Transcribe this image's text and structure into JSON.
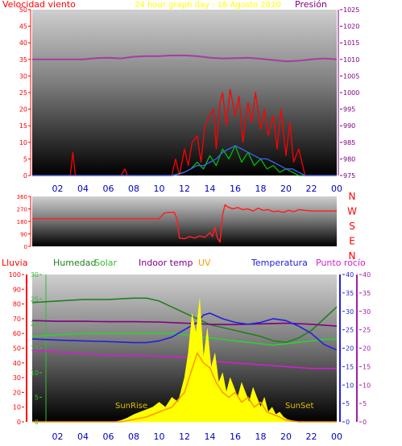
{
  "chart_data": [
    {
      "type": "line",
      "title": "24 hour graph day : 18 Agosto 2020",
      "left_label": "Velocidad viento",
      "right_label": "Presión",
      "y_ticks": [
        "0",
        "5",
        "10",
        "15",
        "20",
        "25",
        "30",
        "35",
        "40",
        "45",
        "50"
      ],
      "ylim": [
        0,
        50
      ],
      "y2_ticks": [
        "975",
        "980",
        "985",
        "990",
        "995",
        "1000",
        "1005",
        "1010",
        "1015",
        "1020",
        "1025"
      ],
      "y2lim": [
        975,
        1025
      ],
      "x_ticks": [
        "02",
        "04",
        "06",
        "08",
        "10",
        "12",
        "14",
        "16",
        "18",
        "20",
        "22",
        "00"
      ],
      "xlim": [
        0,
        24
      ],
      "colors": {
        "gust": "#ff0000",
        "wind": "#00c000",
        "avg": "#4060ff",
        "pressure": "#a040a0",
        "axis_left": "#ff0000",
        "axis_right": "#800080",
        "x_ticks": "#0000c0",
        "title": "#ffff00"
      },
      "series": [
        {
          "name": "Presión",
          "axis": "right",
          "x": [
            0,
            1,
            2,
            3,
            4,
            5,
            6,
            7,
            8,
            9,
            10,
            11,
            12,
            13,
            14,
            15,
            16,
            17,
            18,
            19,
            20,
            21,
            22,
            23,
            24
          ],
          "values": [
            1010,
            1010,
            1010,
            1010,
            1010,
            1010.4,
            1010.5,
            1010.3,
            1010.8,
            1011,
            1011,
            1011.2,
            1011.2,
            1011,
            1010.5,
            1010.3,
            1010.4,
            1010.5,
            1010.2,
            1009.8,
            1009.4,
            1009.6,
            1010,
            1010.3,
            1010
          ]
        },
        {
          "name": "gust",
          "axis": "left",
          "x": [
            0,
            0.5,
            1,
            1.5,
            2,
            2.5,
            3,
            3.2,
            3.4,
            4,
            5,
            6,
            7,
            7.3,
            7.5,
            8,
            9,
            10,
            10.5,
            11,
            11.3,
            11.6,
            12,
            12.3,
            12.6,
            13,
            13.3,
            13.6,
            14,
            14.3,
            14.5,
            14.8,
            15,
            15.3,
            15.6,
            16,
            16.3,
            16.6,
            17,
            17.3,
            17.6,
            18,
            18.3,
            18.6,
            19,
            19.3,
            19.6,
            20,
            20.3,
            20.6,
            21,
            21.5,
            22,
            22.5,
            23,
            23.5,
            24
          ],
          "values": [
            0,
            0,
            0,
            0,
            0,
            0,
            0,
            7,
            0,
            0,
            0,
            0,
            0,
            2,
            0,
            0,
            0,
            0,
            0,
            0,
            5,
            0,
            8,
            3,
            10,
            12,
            4,
            15,
            18,
            20,
            8,
            22,
            25,
            15,
            26,
            18,
            24,
            10,
            22,
            16,
            25,
            14,
            20,
            12,
            18,
            8,
            20,
            6,
            16,
            4,
            8,
            0,
            0,
            0,
            0,
            0,
            0
          ]
        },
        {
          "name": "wind",
          "axis": "left",
          "x": [
            0,
            11,
            12,
            12.5,
            13,
            13.5,
            14,
            14.5,
            15,
            15.5,
            16,
            16.5,
            17,
            17.5,
            18,
            18.5,
            19,
            19.5,
            20,
            20.5,
            21,
            21.5,
            24
          ],
          "values": [
            0,
            0,
            1,
            2,
            4,
            2,
            6,
            3,
            8,
            5,
            9,
            4,
            7,
            3,
            5,
            2,
            3,
            1,
            2,
            1,
            0,
            0,
            0
          ]
        },
        {
          "name": "avg",
          "axis": "left",
          "x": [
            0,
            11,
            11.5,
            12,
            12.5,
            13,
            13.5,
            14,
            14.5,
            15,
            15.5,
            16,
            16.5,
            17,
            17.5,
            18,
            18.5,
            19,
            19.5,
            20,
            20.5,
            21,
            21.5,
            22,
            24
          ],
          "values": [
            0,
            0,
            0.3,
            1,
            2,
            3,
            3,
            4,
            5,
            7,
            8,
            9,
            8,
            7,
            6,
            5,
            5,
            4,
            3,
            2,
            2,
            1,
            0,
            0,
            0
          ]
        }
      ]
    },
    {
      "type": "line",
      "right_labels": [
        "N",
        "W",
        "S",
        "E",
        "N"
      ],
      "y_ticks": [
        "0",
        "90",
        "180",
        "270",
        "360"
      ],
      "ylim": [
        0,
        360
      ],
      "x_ticks": [
        "02",
        "04",
        "06",
        "08",
        "10",
        "12",
        "14",
        "16",
        "18",
        "20",
        "22",
        "00"
      ],
      "xlim": [
        0,
        24
      ],
      "colors": {
        "direction": "#ff2020",
        "axis": "#ff0000"
      },
      "series": [
        {
          "name": "direction",
          "x": [
            0,
            1,
            2,
            3,
            4,
            5,
            6,
            7,
            8,
            9,
            10,
            10.4,
            10.8,
            11.2,
            11.4,
            11.6,
            12,
            12.4,
            12.8,
            13.2,
            13.6,
            13.8,
            14,
            14.2,
            14.4,
            14.6,
            14.8,
            15,
            15.2,
            15.4,
            15.8,
            16.2,
            16.6,
            17,
            17.4,
            17.8,
            18.2,
            18.6,
            19,
            19.4,
            19.8,
            20.2,
            20.6,
            21,
            21.5,
            22,
            23,
            24
          ],
          "values": [
            200,
            200,
            200,
            200,
            200,
            200,
            200,
            200,
            200,
            200,
            200,
            240,
            245,
            245,
            200,
            60,
            55,
            70,
            60,
            75,
            65,
            80,
            100,
            70,
            140,
            60,
            30,
            230,
            300,
            285,
            270,
            280,
            265,
            270,
            255,
            275,
            260,
            265,
            250,
            255,
            245,
            260,
            250,
            265,
            260,
            255,
            255,
            255
          ]
        }
      ]
    },
    {
      "type": "line",
      "header_labels": [
        "Lluvia",
        "Humedad",
        "Solar",
        "Indoor temp",
        "UV",
        "Temperatura",
        "Punto rocío"
      ],
      "axis_ticks": {
        "lluvia": [
          "0",
          "10",
          "20",
          "30",
          "40",
          "50",
          "60",
          "70",
          "80",
          "90",
          "100"
        ],
        "solar": [
          "0",
          "5",
          "10",
          "15",
          "20",
          "25",
          "30"
        ],
        "temperatura": [
          "0",
          "5",
          "10",
          "15",
          "20",
          "25",
          "30",
          "35",
          "40"
        ],
        "punto_rocio": [
          "0",
          "5",
          "10",
          "15",
          "20",
          "25",
          "30",
          "35",
          "40"
        ]
      },
      "x_ticks": [
        "02",
        "04",
        "06",
        "08",
        "10",
        "12",
        "14",
        "16",
        "18",
        "20",
        "22",
        "00"
      ],
      "xlim": [
        0,
        24
      ],
      "annotations": [
        "SunRise",
        "SunSet"
      ],
      "colors": {
        "humedad": "#208020",
        "solar_series": "#30d030",
        "indoor": "#800080",
        "uv": "#ff9900",
        "temperatura": "#2020e0",
        "punto_rocio": "#d020d0",
        "solar_fill": "#ffff00",
        "lluvia": "#ff0000"
      },
      "series": [
        {
          "name": "Humedad",
          "axis": "lluvia",
          "x": [
            0,
            2,
            4,
            6,
            8,
            9,
            10,
            11,
            12,
            13,
            14,
            15,
            16,
            17,
            18,
            19,
            20,
            21,
            22,
            23,
            24
          ],
          "values": [
            81,
            82,
            83,
            83,
            84,
            84,
            82,
            78,
            74,
            70,
            66,
            64,
            62,
            60,
            58,
            55,
            54,
            57,
            62,
            70,
            78
          ]
        },
        {
          "name": "Solar",
          "axis": "lluvia",
          "x": [
            0,
            2,
            4,
            6,
            8,
            10,
            11,
            12,
            13,
            14,
            15,
            16,
            17,
            18,
            19,
            20,
            21,
            22,
            23,
            24
          ],
          "values": [
            58,
            59,
            60,
            60,
            60,
            60,
            60,
            59,
            58,
            57,
            56,
            55,
            54,
            53,
            52,
            53,
            54,
            55,
            56,
            56
          ]
        },
        {
          "name": "Indoor temp",
          "axis": "temperatura",
          "x": [
            0,
            2,
            4,
            6,
            8,
            10,
            12,
            14,
            16,
            18,
            20,
            22,
            24
          ],
          "values": [
            27.5,
            27.3,
            27.3,
            27.2,
            27.2,
            27.1,
            26.8,
            26.5,
            26.4,
            26.6,
            26.8,
            26.5,
            26.0
          ]
        },
        {
          "name": "Temperatura",
          "axis": "temperatura",
          "x": [
            0,
            2,
            4,
            6,
            8,
            9,
            10,
            11,
            12,
            13,
            13.5,
            14,
            15,
            16,
            17,
            18,
            19,
            20,
            21,
            22,
            23,
            24
          ],
          "values": [
            22.5,
            22.2,
            22.0,
            21.8,
            21.5,
            21.5,
            22,
            23,
            25,
            27,
            29,
            29.5,
            28,
            27,
            26.5,
            27,
            28,
            27.5,
            26,
            24,
            21,
            19.5
          ]
        },
        {
          "name": "Punto rocío",
          "axis": "punto_rocio",
          "x": [
            0,
            2,
            4,
            6,
            8,
            10,
            12,
            14,
            16,
            18,
            20,
            22,
            24
          ],
          "values": [
            19.5,
            19,
            18.5,
            18,
            18,
            17.8,
            17.5,
            16.5,
            16,
            15.5,
            15,
            14.5,
            14.5
          ]
        },
        {
          "name": "SolarRad",
          "axis": "solar",
          "fill": true,
          "x": [
            0,
            6.5,
            7,
            7.5,
            8,
            8.5,
            9,
            9.5,
            10,
            10.5,
            11,
            11.5,
            12,
            12.3,
            12.6,
            12.9,
            13.2,
            13.5,
            13.8,
            14.1,
            14.4,
            14.7,
            15,
            15.3,
            15.6,
            15.9,
            16.2,
            16.5,
            16.8,
            17.1,
            17.4,
            17.7,
            18,
            18.3,
            18.6,
            18.9,
            19.2,
            19.5,
            19.8,
            20.1,
            20.4,
            20.7,
            21,
            24
          ],
          "values": [
            0,
            0,
            0.3,
            0.8,
            1.5,
            2,
            2.5,
            3,
            4,
            3,
            5,
            4,
            9,
            14,
            22,
            18,
            25,
            13,
            19,
            11,
            14,
            8,
            10,
            6,
            9,
            7,
            5,
            8,
            6,
            4,
            7,
            5,
            3,
            5,
            2,
            3,
            1.5,
            2,
            1,
            0.5,
            0.3,
            0.1,
            0,
            0
          ]
        },
        {
          "name": "UV",
          "axis": "solar",
          "x": [
            0,
            7,
            8,
            9,
            10,
            11,
            12,
            12.5,
            13,
            13.5,
            14,
            14.5,
            15,
            15.5,
            16,
            16.5,
            17,
            17.5,
            18,
            18.5,
            19,
            19.5,
            20,
            21,
            24
          ],
          "values": [
            0,
            0,
            0.5,
            1,
            2,
            3,
            6,
            10,
            14,
            12,
            11,
            8,
            6,
            5,
            6,
            4,
            5,
            3,
            4,
            2,
            1.5,
            1,
            0.3,
            0,
            0
          ]
        }
      ]
    }
  ]
}
